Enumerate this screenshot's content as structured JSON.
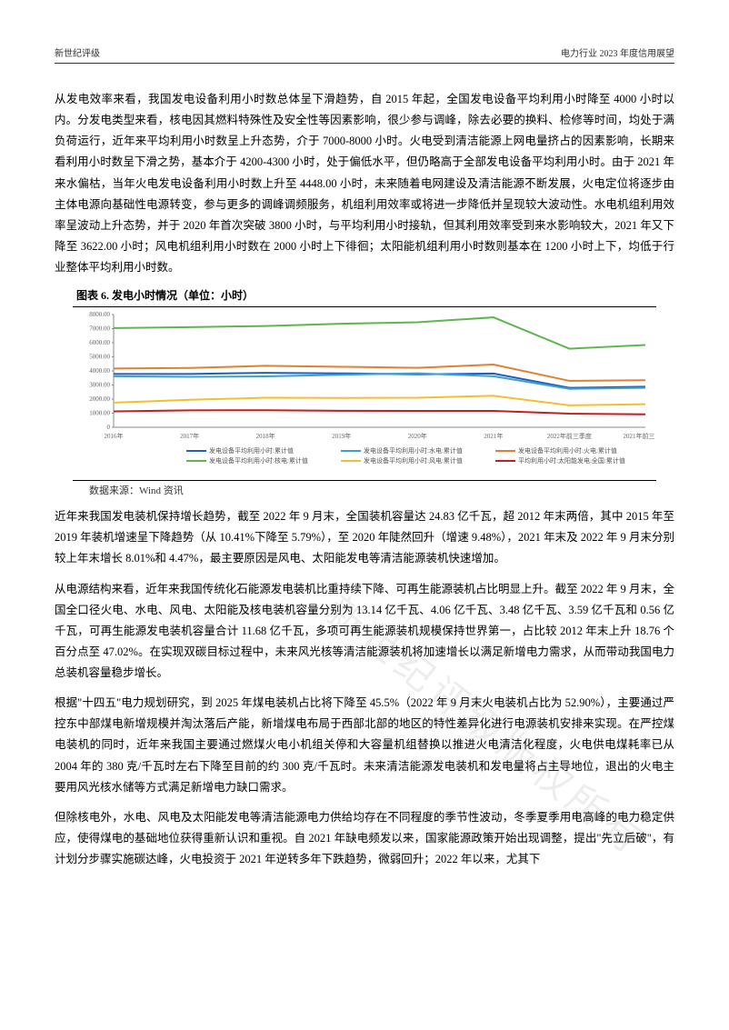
{
  "header": {
    "left": "新世纪评级",
    "right": "电力行业 2023 年度信用展望"
  },
  "paragraphs": {
    "p1": "从发电效率来看，我国发电设备利用小时数总体呈下滑趋势，自 2015 年起，全国发电设备平均利用小时降至 4000 小时以内。分发电类型来看，核电因其燃料特殊性及安全性等因素影响，很少参与调峰，除去必要的换料、检修等时间，均处于满负荷运行，近年来平均利用小时数呈上升态势，介于 7000-8000 小时。火电受到清洁能源上网电量挤占的因素影响，长期来看利用小时数呈下滑之势，基本介于 4200-4300 小时，处于偏低水平，但仍略高于全部发电设备平均利用小时。由于 2021 年来水偏枯，当年火电发电设备利用小时数上升至 4448.00 小时，未来随着电网建设及清洁能源不断发展，火电定位将逐步由主体电源向基础性电源转变，参与更多的调峰调频服务，机组利用效率或将进一步降低并呈现较大波动性。水电机组利用效率呈波动上升态势，并于 2020 年首次突破 3800 小时，与平均利用小时接轨，但其利用效率受到来水影响较大，2021 年又下降至 3622.00 小时；风电机组利用小时数在 2000 小时上下徘徊；太阳能机组利用小时数则基本在 1200 小时上下，均低于行业整体平均利用小时数。",
    "p2": "近年来我国发电装机保持增长趋势，截至 2022 年 9 月末，全国装机容量达 24.83 亿千瓦，超 2012 年末两倍，其中 2015 年至 2019 年装机增速呈下降趋势（从 10.41%下降至 5.79%），至 2020 年陡然回升（增速 9.48%），2021 年末及 2022 年 9 月末分别较上年末增长 8.01%和 4.47%，最主要原因是风电、太阳能发电等清洁能源装机快速增加。",
    "p3": "从电源结构来看，近年来我国传统化石能源发电装机比重持续下降、可再生能源装机占比明显上升。截至 2022 年 9 月末，全国全口径火电、水电、风电、太阳能及核电装机容量分别为 13.14 亿千瓦、4.06 亿千瓦、3.48 亿千瓦、3.59 亿千瓦和 0.56 亿千瓦，可再生能源发电装机容量合计 11.68 亿千瓦，多项可再生能源装机规模保持世界第一，占比较 2012 年末上升 18.76 个百分点至 47.02%。在实现双碳目标过程中，未来风光核等清洁能源装机将加速增长以满足新增电力需求，从而带动我国电力总装机容量稳步增长。",
    "p4": "根据\"十四五\"电力规划研究，到 2025 年煤电装机占比将下降至 45.5%（2022 年 9 月末火电装机占比为 52.90%），主要通过严控东中部煤电新增规模并淘汰落后产能，新增煤电布局于西部北部的地区的特性差异化进行电源装机安排来实现。在严控煤电装机的同时，近年来我国主要通过燃煤火电小机组关停和大容量机组替换以推进火电清洁化程度，火电供电煤耗率已从 2004 年的 380 克/千瓦时左右下降至目前的约 300 克/千瓦时。未来清洁能源发电装机和发电量将占主导地位，退出的火电主要用风光核水储等方式满足新增电力缺口需求。",
    "p5": "但除核电外，水电、风电及太阳能发电等清洁能源电力供给均存在不同程度的季节性波动，冬季夏季用电高峰的电力稳定供应，使得煤电的基础地位获得重新认识和重视。自 2021 年缺电频发以来，国家能源政策开始出现调整，提出\"先立后破\"，有计划分步骤实施碳达峰，火电投资于 2021 年逆转多年下跌趋势，微弱回升；2022 年以来，尤其下"
  },
  "chart": {
    "title": "图表 6. 发电小时情况（单位：小时）",
    "source": "数据来源：Wind 资讯",
    "categories": [
      "2016年",
      "2017年",
      "2018年",
      "2019年",
      "2020年",
      "2021年",
      "2022年前三季度",
      "2021年前三季度"
    ],
    "y_ticks": [
      0,
      "1000.00",
      "2000.00",
      "3000.00",
      "4000.00",
      "5000.00",
      "6000.00",
      "7000.00",
      "8000.00"
    ],
    "ylim": [
      0,
      8000
    ],
    "series": [
      {
        "name": "发电设备平均利用小时:累计值",
        "color": "#1f5fbf",
        "values": [
          3785,
          3786,
          3862,
          3825,
          3758,
          3817,
          2799,
          2880
        ]
      },
      {
        "name": "发电设备平均利用小时:水电:累计值",
        "color": "#3fa0d0",
        "values": [
          3621,
          3579,
          3613,
          3726,
          3827,
          3622,
          2729,
          2800
        ]
      },
      {
        "name": "发电设备平均利用小时:火电:累计值",
        "color": "#e08030",
        "values": [
          4165,
          4209,
          4361,
          4293,
          4216,
          4448,
          3295,
          3339
        ]
      },
      {
        "name": "发电设备平均利用小时:核电:累计值",
        "color": "#5fb54f",
        "values": [
          7042,
          7108,
          7184,
          7346,
          7453,
          7802,
          5576,
          5842
        ]
      },
      {
        "name": "发电设备平均利用小时:风电:累计值",
        "color": "#f0c030",
        "values": [
          1742,
          1948,
          2095,
          2082,
          2097,
          2232,
          1555,
          1640
        ]
      },
      {
        "name": "平均利用小时:太阳能发电:全国:累计值",
        "color": "#c02020",
        "values": [
          1125,
          1204,
          1212,
          1169,
          1160,
          1163,
          968,
          920
        ]
      }
    ],
    "line_width": 2,
    "background_color": "#ffffff",
    "tick_fontsize": 7,
    "axis_color": "#888888",
    "legend_fontsize": 7
  },
  "watermark": "新世纪评级版权所有"
}
